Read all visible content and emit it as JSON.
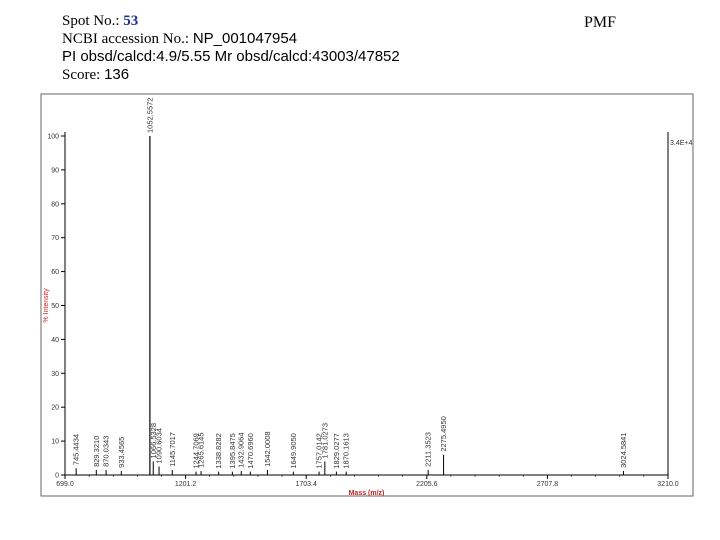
{
  "header": {
    "spot_label": "Spot No.:",
    "spot_value": "53",
    "accession_label": "NCBI accession No.:",
    "accession_value": "NP_001047954",
    "pi_line": "PI obsd/calcd:4.9/5.55   Mr obsd/calcd:43003/47852",
    "score_label": "Score:",
    "score_value": "136",
    "method": "PMF"
  },
  "chart_data": {
    "type": "bar",
    "xlabel": "Mass (m/z)",
    "ylabel": "% Intensity",
    "xlim": [
      699.0,
      3210.0
    ],
    "ylim": [
      0,
      100
    ],
    "x_ticks": [
      "699.0",
      "1201.2",
      "1703.4",
      "2205.6",
      "2707.8",
      "3210.0"
    ],
    "y_ticks": [
      "0",
      "10",
      "20",
      "30",
      "40",
      "50",
      "60",
      "70",
      "80",
      "90",
      "100"
    ],
    "max_intensity_label": "3.4E+4",
    "peaks": [
      {
        "mz": 745.4434,
        "label": "745.4434",
        "intensity": 2.0
      },
      {
        "mz": 829.321,
        "label": "829.3210",
        "intensity": 1.5
      },
      {
        "mz": 870.0343,
        "label": "870.0343",
        "intensity": 1.5
      },
      {
        "mz": 933.4565,
        "label": "933.4565",
        "intensity": 1.2
      },
      {
        "mz": 1052.5572,
        "label": "1052.5572",
        "intensity": 100
      },
      {
        "mz": 1066.5328,
        "label": "1066.5328",
        "intensity": 4
      },
      {
        "mz": 1090.6034,
        "label": "1090.6034",
        "intensity": 2.5
      },
      {
        "mz": 1145.7017,
        "label": "1145.7017",
        "intensity": 1.5
      },
      {
        "mz": 1244.7069,
        "label": "1244.7069",
        "intensity": 1.0
      },
      {
        "mz": 1265.6145,
        "label": "1265.6145",
        "intensity": 1.2
      },
      {
        "mz": 1338.8282,
        "label": "1338.8282",
        "intensity": 1.0
      },
      {
        "mz": 1395.8475,
        "label": "1395.8475",
        "intensity": 1.0
      },
      {
        "mz": 1432.9064,
        "label": "1432.9064",
        "intensity": 1.2
      },
      {
        "mz": 1470.696,
        "label": "1470.6960",
        "intensity": 1.0
      },
      {
        "mz": 1542.0008,
        "label": "1542.0008",
        "intensity": 1.5
      },
      {
        "mz": 1649.905,
        "label": "1649.9050",
        "intensity": 1.0
      },
      {
        "mz": 1757.0142,
        "label": "1757.0142",
        "intensity": 1.0
      },
      {
        "mz": 1781.0273,
        "label": "1781.0273",
        "intensity": 4
      },
      {
        "mz": 1829.0277,
        "label": "1829.0277",
        "intensity": 1.0
      },
      {
        "mz": 1870.1613,
        "label": "1870.1613",
        "intensity": 1.0
      },
      {
        "mz": 2211.3523,
        "label": "2211.3523",
        "intensity": 1.5
      },
      {
        "mz": 2275.495,
        "label": "2275.4950",
        "intensity": 6
      },
      {
        "mz": 3024.5841,
        "label": "3024.5841",
        "intensity": 1.2
      }
    ],
    "colors": {
      "axis": "#000000",
      "axis_title": "#cc2222",
      "tick_text": "#333333",
      "peak": "#000000",
      "peak_label": "#333333",
      "panel_border": "#666666"
    }
  }
}
